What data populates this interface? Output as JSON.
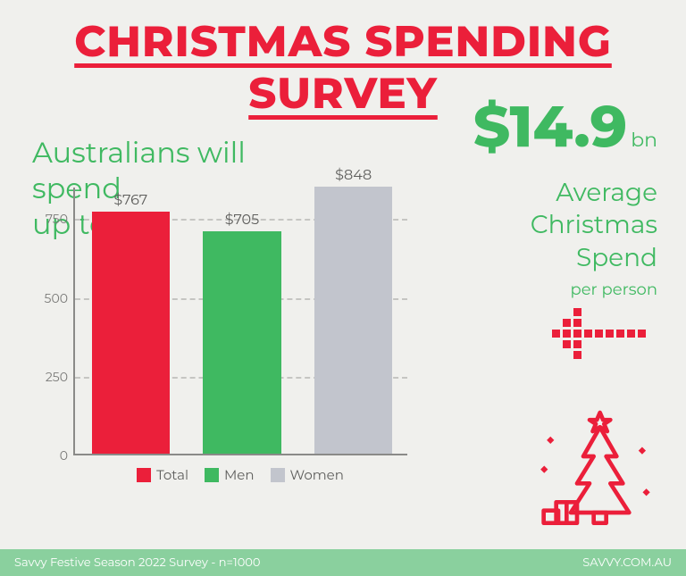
{
  "colors": {
    "background": "#f0f0ed",
    "red": "#eb1f3a",
    "green": "#3fb961",
    "grey_bar": "#c2c5cd",
    "axis": "#8a8a88",
    "grid": "#c5c5c2",
    "tick_text": "#7a7a78",
    "footer_bg": "#8ad09e",
    "dark_text": "#5e5e5c"
  },
  "title": "CHRISTMAS SPENDING SURVEY",
  "subtitle_line1": "Australians will spend",
  "subtitle_line2": "up to:",
  "headline_value": "$14.9",
  "headline_unit": "bn",
  "avg_line1": "Average",
  "avg_line2": "Christmas",
  "avg_line3": "Spend",
  "per_person": "per person",
  "chart": {
    "type": "bar",
    "ylim": [
      0,
      850
    ],
    "ytick_step": 250,
    "yticks": [
      0,
      250,
      500,
      750
    ],
    "bar_width_ratio": 0.7,
    "axis_color": "#8a8a88",
    "grid_color": "#c5c5c2",
    "tick_fontsize": 14,
    "label_fontsize": 16,
    "series": [
      {
        "name": "Total",
        "value": 767,
        "label": "$767",
        "color": "#eb1f3a"
      },
      {
        "name": "Men",
        "value": 705,
        "label": "$705",
        "color": "#3fb961"
      },
      {
        "name": "Women",
        "value": 848,
        "label": "$848",
        "color": "#c2c5cd"
      }
    ]
  },
  "footer_left": "Savvy Festive Season 2022 Survey - n=1000",
  "footer_right": "SAVVY.COM.AU"
}
